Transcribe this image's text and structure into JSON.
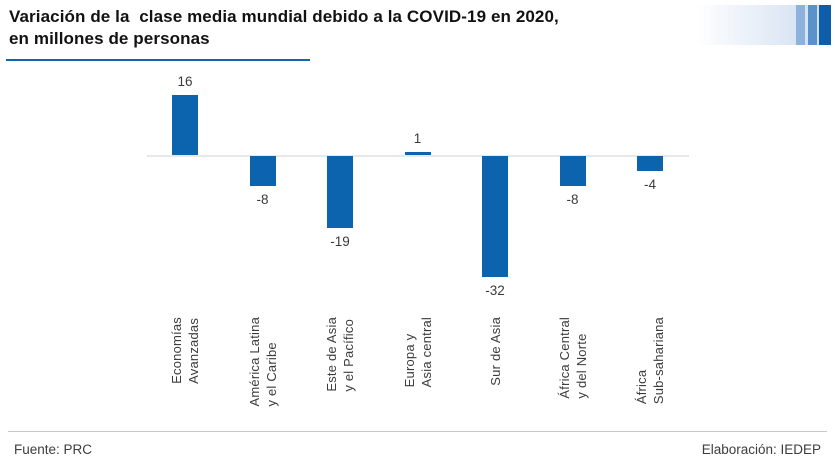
{
  "header": {
    "title": "Variación de la  clase media mundial debido a la COVID-19 en 2020,\nen millones de personas"
  },
  "footer": {
    "source": "Fuente: PRC",
    "elaboration": "Elaboración: IEDEP"
  },
  "colors": {
    "bar": "#0c63ae",
    "title_underline": "#1565ae",
    "axis_line": "#e8e8e8",
    "deco_bar_light": "#8db2dc",
    "deco_bar_medium": "#5c92cc",
    "deco_bar_dark": "#0e5dab"
  },
  "chart_data": {
    "type": "bar",
    "title": "Variación de la clase media mundial debido a la COVID-19 en 2020, en millones de personas",
    "categories": [
      "Economías\nAvanzadas",
      "América Latina\ny el Caribe",
      "Este de Asia\ny el Pacífico",
      "Europa y\nAsia central",
      "Sur de Asia",
      "África Central\ny del Norte",
      "África\nSub-sahariana"
    ],
    "values": [
      16,
      -8,
      -19,
      1,
      -32,
      -8,
      -4
    ],
    "value_labels": [
      "16",
      "-8",
      "-19",
      "1",
      "-32",
      "-8",
      "-4"
    ],
    "xlabel": "",
    "ylabel": "millones de personas",
    "ylim": [
      -36,
      20
    ],
    "grid": false,
    "legend": null,
    "bar_color": "#0c63ae"
  }
}
